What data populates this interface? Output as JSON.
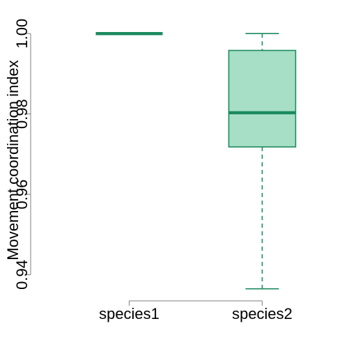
{
  "chart_data": {
    "type": "box",
    "title": "",
    "xlabel": "",
    "ylabel": "Movement coordination index",
    "ylim": [
      0.9335,
      1.0035
    ],
    "yticks": [
      0.94,
      0.96,
      0.98,
      1.0
    ],
    "ytick_labels": [
      "0.94",
      "0.96",
      "0.98",
      "1.00"
    ],
    "grid": false,
    "legend": "none",
    "categories": [
      "species1",
      "species2"
    ],
    "boxes": [
      {
        "name": "species1",
        "whisker_low": 1.0,
        "q1": 1.0,
        "median": 1.0,
        "q3": 1.0,
        "whisker_high": 1.0
      },
      {
        "name": "species2",
        "whisker_low": 0.9365,
        "q1": 0.9718,
        "median": 0.9803,
        "q3": 0.9958,
        "whisker_high": 1.0
      }
    ],
    "colors": {
      "line": "#1b8a5f",
      "fill": "#a6dfc5",
      "axis": "#7f7f7f"
    }
  }
}
